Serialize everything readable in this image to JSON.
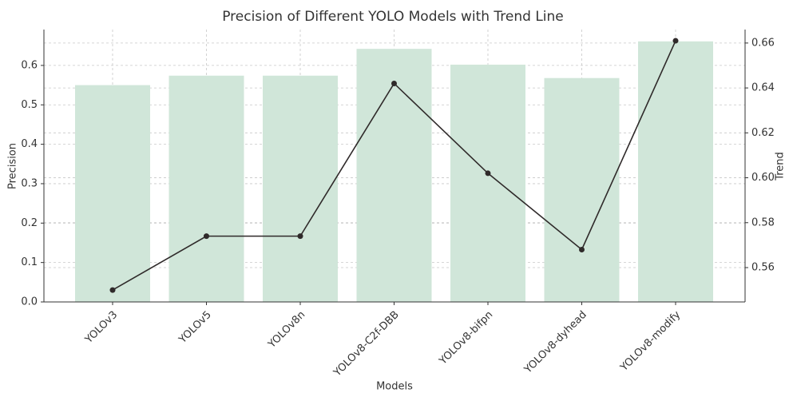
{
  "chart_data": {
    "type": "bar",
    "title": "Precision of Different YOLO Models with Trend Line",
    "xlabel": "Models",
    "ylabel": "Precision",
    "y2label": "Trend",
    "categories": [
      "YOLOv3",
      "YOLOv5",
      "YOLOv8n",
      "YOLOv8-C2f-DBB",
      "YOLOv8-bifpn",
      "YOLOv8-dyhead",
      "YOLOv8-modify"
    ],
    "series": [
      {
        "type": "bar",
        "color": "#d0e6d9",
        "values": [
          0.55,
          0.574,
          0.574,
          0.642,
          0.602,
          0.568,
          0.661
        ]
      },
      {
        "type": "line",
        "axis": "y2",
        "color": "#2f2a2a",
        "values": [
          0.55,
          0.574,
          0.574,
          0.642,
          0.602,
          0.568,
          0.661
        ]
      }
    ],
    "ylim": [
      0,
      0.691
    ],
    "yticks": [
      {
        "value": 0,
        "label": "0.0"
      },
      0.1,
      0.2,
      0.3,
      0.4,
      0.5,
      0.6
    ],
    "y2lim": [
      0.5447,
      0.666
    ],
    "y2ticks": [
      0.56,
      0.58,
      {
        "value": 0.6,
        "label": "0.60"
      },
      0.62,
      0.64,
      0.66
    ],
    "grid": true
  }
}
